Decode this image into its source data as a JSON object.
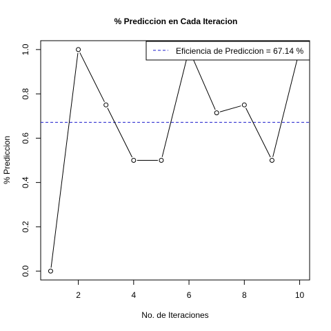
{
  "chart_data": {
    "type": "line",
    "title": "% Prediccion en Cada Iteracion",
    "xlabel": "No. de Iteraciones",
    "ylabel": "% Prediccion",
    "x": [
      1,
      2,
      3,
      4,
      5,
      6,
      7,
      8,
      9,
      10
    ],
    "series": [
      {
        "values": [
          0.0,
          1.0,
          0.75,
          0.5,
          0.5,
          1.0,
          0.7143,
          0.75,
          0.5,
          1.0
        ]
      }
    ],
    "reference_line": {
      "value": 0.6714,
      "style": "dashed",
      "color": "#1a1acc",
      "label": "Eficiencia de Prediccion = 67.14 %"
    },
    "x_ticks": [
      "2",
      "4",
      "6",
      "8",
      "10"
    ],
    "y_ticks": [
      "0.0",
      "0.2",
      "0.4",
      "0.6",
      "0.8",
      "1.0"
    ],
    "xlim": [
      0.64,
      10.36
    ],
    "ylim": [
      -0.04,
      1.04
    ],
    "legend_position": "top-right",
    "grid": false,
    "markers": "open-circle",
    "line_color": "#000000"
  }
}
